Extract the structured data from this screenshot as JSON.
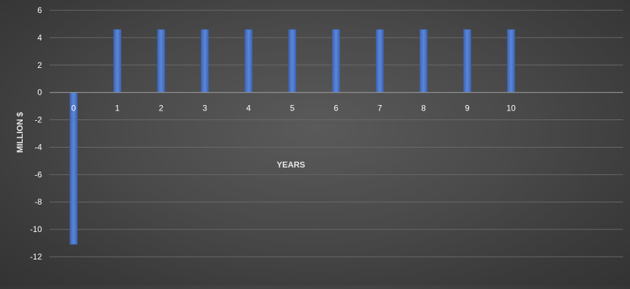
{
  "chart_data": {
    "type": "bar",
    "categories": [
      "0",
      "1",
      "2",
      "3",
      "4",
      "5",
      "6",
      "7",
      "8",
      "9",
      "10"
    ],
    "values": [
      -11.1,
      4.6,
      4.6,
      4.6,
      4.6,
      4.6,
      4.6,
      4.6,
      4.6,
      4.6,
      4.6
    ],
    "xlabel": "YEARS",
    "ylabel": "MILLION $",
    "ylim": [
      -12,
      6
    ],
    "yticks": [
      6,
      4,
      2,
      0,
      -2,
      -4,
      -6,
      -8,
      -10,
      -12
    ],
    "grid": true,
    "legend": "none",
    "colors": {
      "bar": "#4a72c4",
      "bar_light": "#5b84d6",
      "grid": "#6a6a6a",
      "zero_line": "#9a9a9a",
      "tick_text": "#ffffff",
      "label_text": "#e8e8e8"
    }
  }
}
